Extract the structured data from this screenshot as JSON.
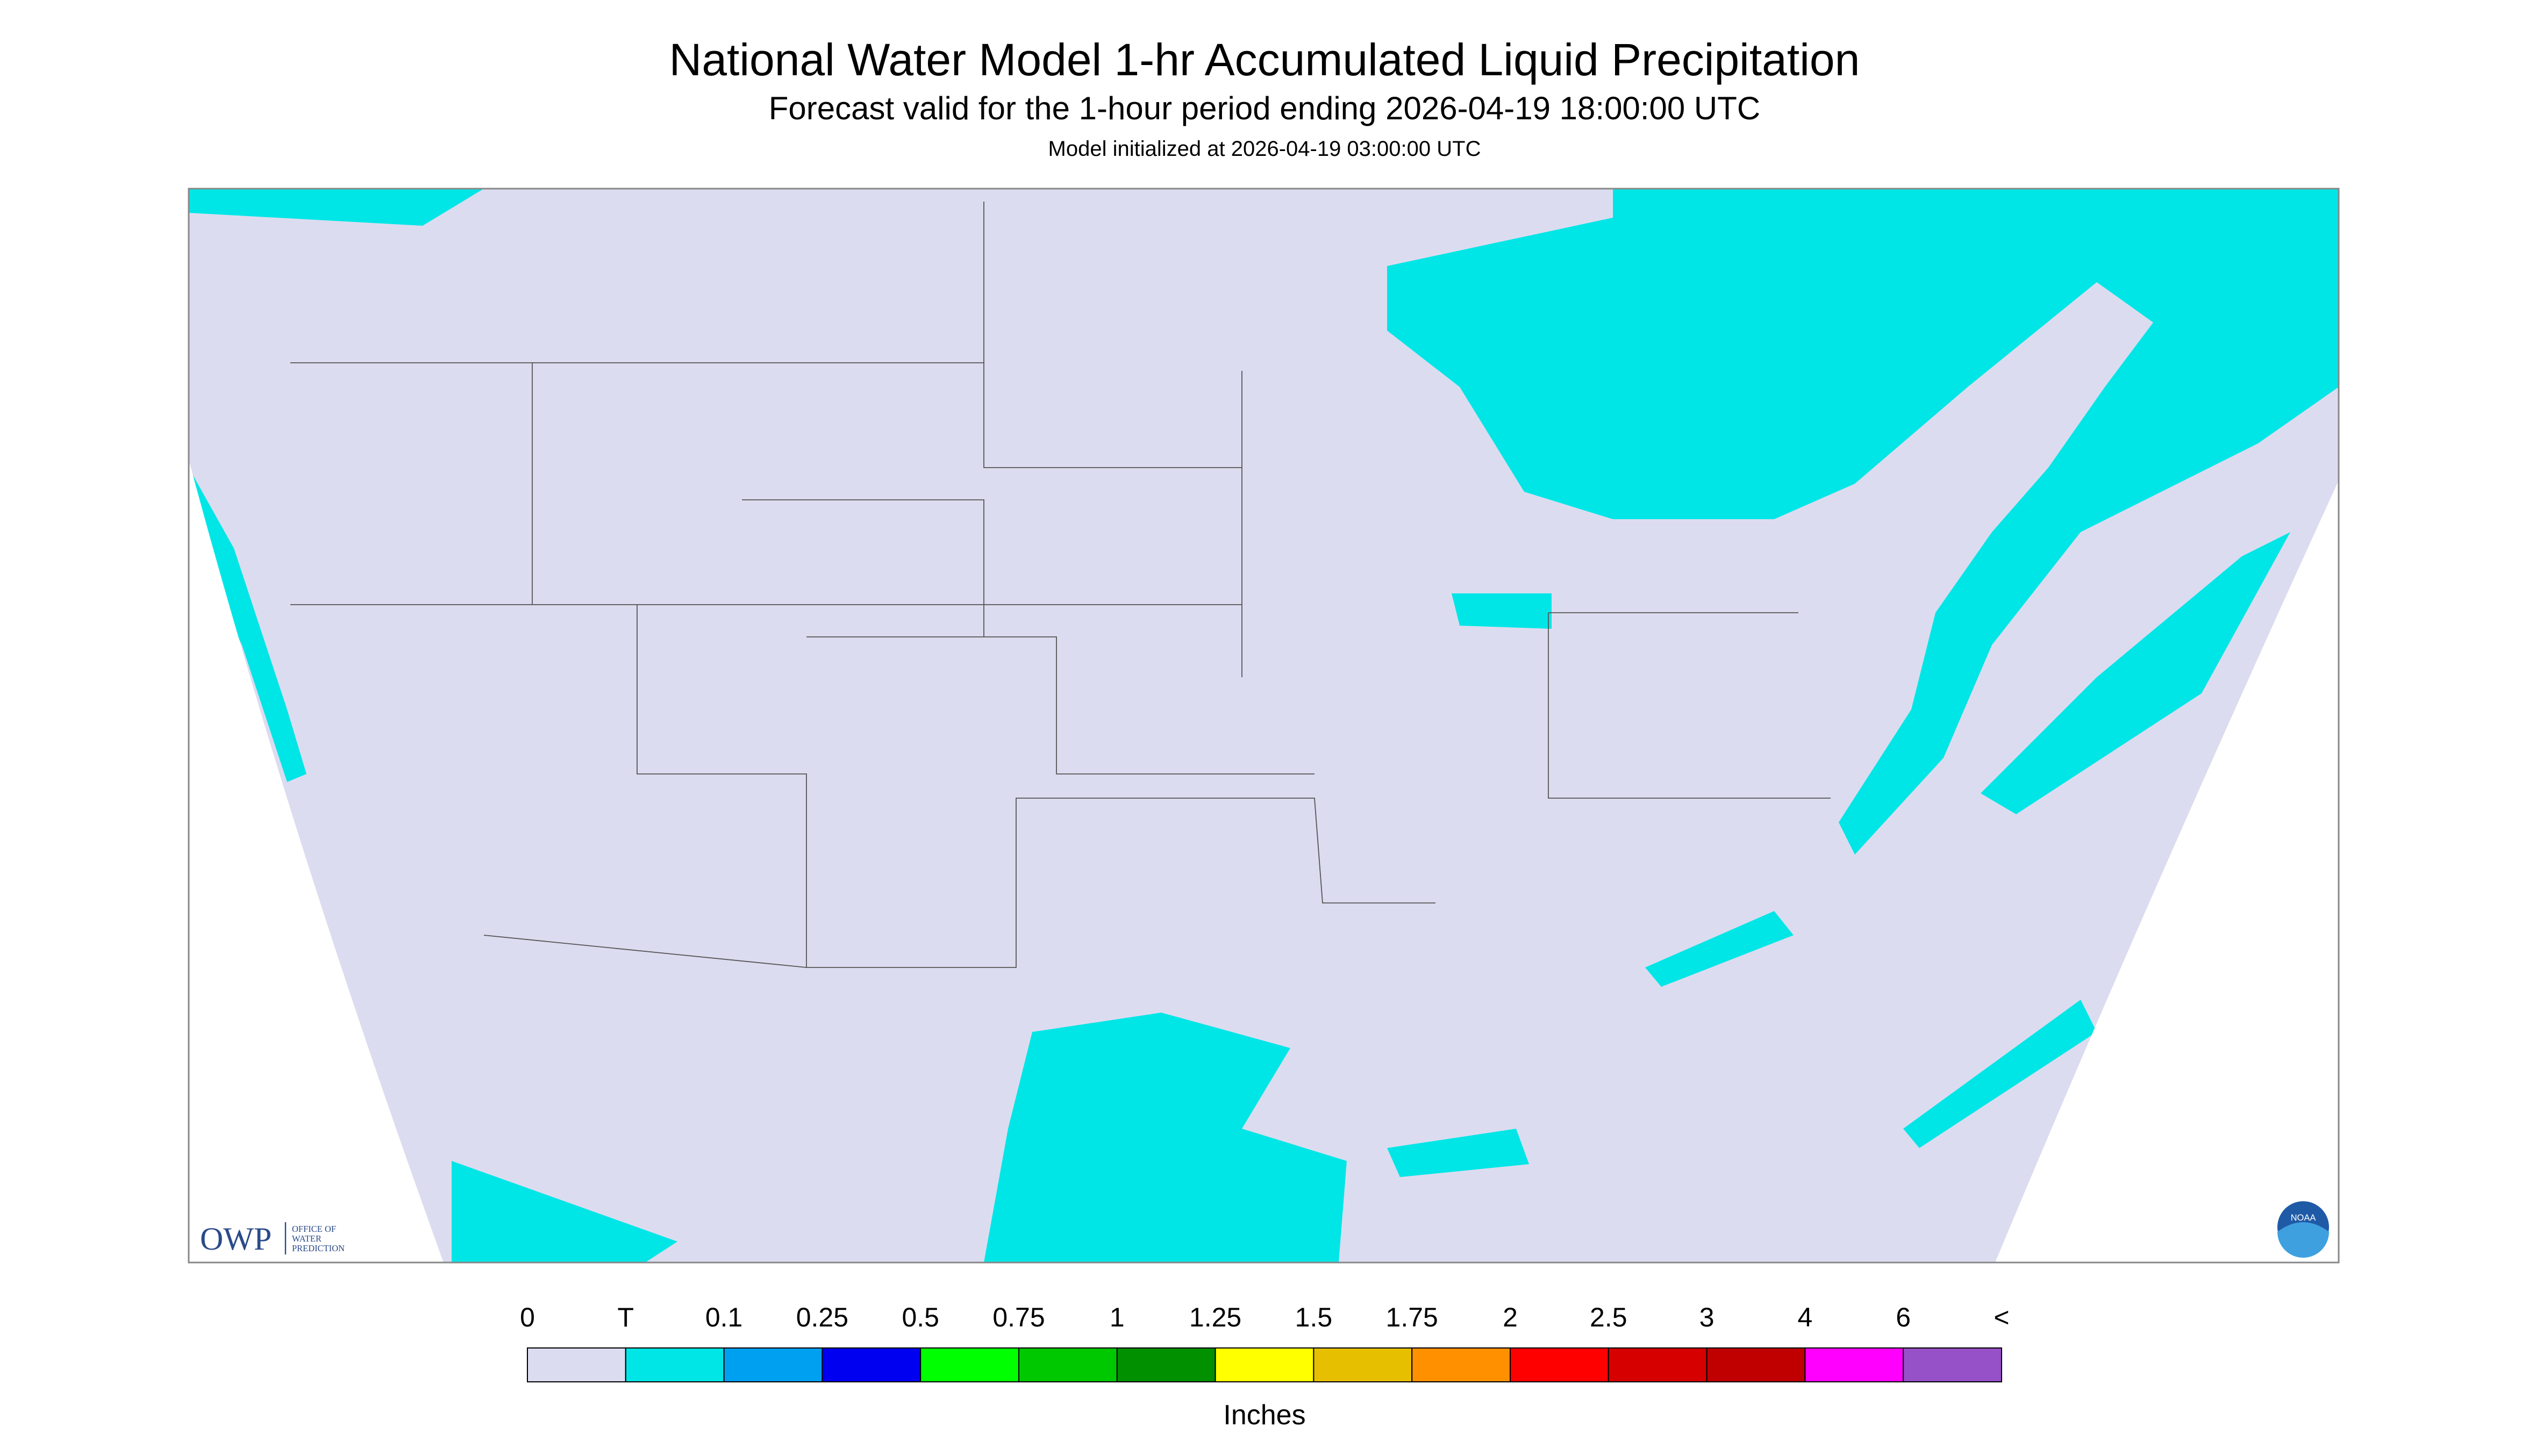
{
  "header": {
    "title": "National Water Model 1-hr Accumulated Liquid Precipitation",
    "subtitle": "Forecast valid for the 1-hour period ending 2026-04-19 18:00:00 UTC",
    "init": "Model initialized at 2026-04-19 03:00:00 UTC"
  },
  "logos": {
    "owp": "OWP",
    "owp_lines": [
      "OFFICE OF",
      "WATER",
      "PREDICTION"
    ],
    "noaa": "NOAA"
  },
  "legend": {
    "labels": [
      "0",
      "T",
      "0.1",
      "0.25",
      "0.5",
      "0.75",
      "1",
      "1.25",
      "1.5",
      "1.75",
      "2",
      "2.5",
      "3",
      "4",
      "6",
      "<"
    ],
    "colors": [
      "#dcdcf0",
      "#00e6e6",
      "#00a0f0",
      "#0000f0",
      "#00ff00",
      "#00c800",
      "#009000",
      "#ffff00",
      "#e6c000",
      "#ff9000",
      "#ff0000",
      "#d60000",
      "#c00000",
      "#ff00ff",
      "#9650c8"
    ],
    "units": "Inches"
  }
}
